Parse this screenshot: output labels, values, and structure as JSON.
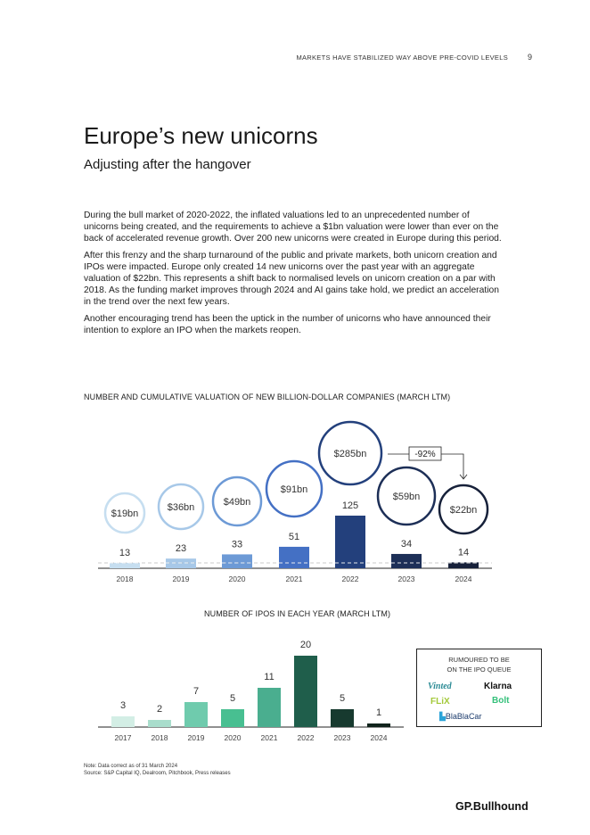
{
  "header": {
    "section": "MARKETS HAVE STABILIZED WAY ABOVE PRE-COVID LEVELS",
    "page_number": "9"
  },
  "title": "Europe’s new unicorns",
  "subtitle": "Adjusting after the hangover",
  "paragraphs": [
    "During the bull market of 2020-2022, the inflated valuations led to an unprecedented number of unicorns being created, and the requirements to achieve a $1bn valuation were lower than ever on the back of accelerated revenue growth. Over 200 new unicorns were created in Europe during this period.",
    "After this frenzy and the sharp turnaround of the public and private markets, both unicorn creation and IPOs were impacted. Europe only created 14 new unicorns over the past year with an aggregate valuation of $22bn. This represents a shift back to normalised levels on unicorn creation on a par with 2018. As the funding market improves through 2024 and AI gains take hold, we predict an acceleration in the trend over the next few years.",
    "Another encouraging trend has been the uptick in the number of unicorns who have announced their intention to explore an IPO when the markets reopen."
  ],
  "chart_data": [
    {
      "type": "bar",
      "title": "NUMBER AND CUMULATIVE VALUATION OF NEW BILLION-DOLLAR COMPANIES (MARCH LTM)",
      "categories": [
        "2018",
        "2019",
        "2020",
        "2021",
        "2022",
        "2023",
        "2024"
      ],
      "series": [
        {
          "values": [
            13,
            23,
            33,
            51,
            125,
            34,
            14
          ]
        },
        {
          "values": [
            19,
            36,
            49,
            91,
            285,
            59,
            22
          ],
          "labels": [
            "$19bn",
            "$36bn",
            "$49bn",
            "$91bn",
            "$285bn",
            "$59bn",
            "$22bn"
          ],
          "mark": "circle"
        }
      ],
      "annotation": "-92%",
      "colors": [
        "#c6def0",
        "#a7c8e8",
        "#6d9ad6",
        "#4470c4",
        "#23407c",
        "#1d2f57",
        "#17213a"
      ],
      "grid": false
    },
    {
      "type": "bar",
      "title": "NUMBER OF IPOS IN EACH YEAR (MARCH LTM)",
      "categories": [
        "2017",
        "2018",
        "2019",
        "2020",
        "2021",
        "2022",
        "2023",
        "2024"
      ],
      "values": [
        3,
        2,
        7,
        5,
        11,
        20,
        5,
        1
      ],
      "colors": [
        "#d3eee5",
        "#a9ddcc",
        "#6fcbad",
        "#48bf91",
        "#4aae8f",
        "#1f5e4b",
        "#173a2f",
        "#10231c"
      ],
      "grid": false
    }
  ],
  "legend": {
    "title_line1": "RUMOURED TO BE",
    "title_line2": "ON THE IPO QUEUE",
    "logos": [
      "Vinted",
      "Klarna",
      "FLiX",
      "Bolt",
      "BlaBlaCar"
    ]
  },
  "note": "Note: Data correct as of 31 March 2024",
  "source": "Source: S&P Capital IQ, Dealroom, Pitchbook, Press releases",
  "brand": "GP.Bullhound"
}
